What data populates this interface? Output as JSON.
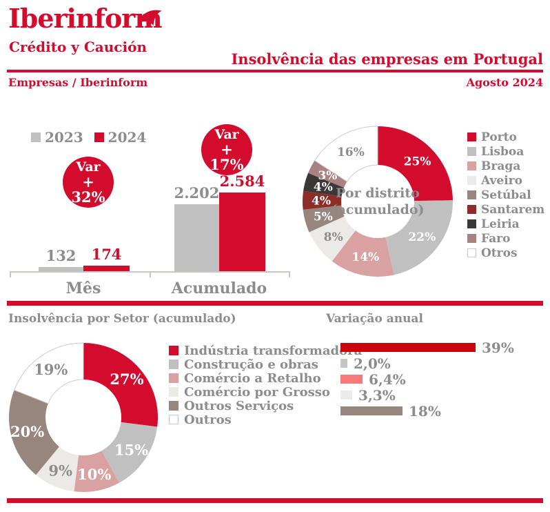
{
  "brand": {
    "logo_text": "Iberinform",
    "logo_sub": "Crédito y Caución"
  },
  "header": {
    "title": "Insolvência das empresas em Portugal",
    "breadcrumb": "Empresas / Iberinform",
    "date": "Agosto 2024"
  },
  "colors": {
    "brand_red": "#D30C2E",
    "text_gray": "#8C8C8C",
    "series_gray": "#C1C0C0",
    "pink": "#D9A1A1",
    "light_gray": "#ECEAE7",
    "taupe": "#97867D",
    "dark_red": "#8E2D28",
    "dark": "#3B3838",
    "mauve": "#A98381",
    "salmon": "#F8797C",
    "variation_red": "#C9040C",
    "axis_gray": "#C9C6C3"
  },
  "chart_data": [
    {
      "id": "monthly_bars",
      "type": "bar",
      "categories": [
        "Mês",
        "Acumulado"
      ],
      "series": [
        {
          "name": "2023",
          "color": "#C1C0C0",
          "values": [
            132,
            2202
          ],
          "labels": [
            "132",
            "2.202"
          ]
        },
        {
          "name": "2024",
          "color": "#D30C2E",
          "values": [
            174,
            2584
          ],
          "labels": [
            "174",
            "2.584"
          ]
        }
      ],
      "annotations": [
        {
          "line1": "Var",
          "line2": "+ 32%"
        },
        {
          "line1": "Var",
          "line2": "+ 17%"
        }
      ],
      "ylim": [
        0,
        2584
      ]
    },
    {
      "id": "district_donut",
      "type": "pie",
      "center_label": [
        "Por distrito",
        "(acumulado)"
      ],
      "legend_position": "right",
      "slices": [
        {
          "label": "Porto",
          "value": 25,
          "text": "25%",
          "color": "#D30C2E"
        },
        {
          "label": "Lisboa",
          "value": 22,
          "text": "22%",
          "color": "#C1C0C0"
        },
        {
          "label": "Braga",
          "value": 14,
          "text": "14%",
          "color": "#D9A1A1"
        },
        {
          "label": "Aveiro",
          "value": 8,
          "text": "8%",
          "color": "#ECEAE7"
        },
        {
          "label": "Setúbal",
          "value": 5,
          "text": "5%",
          "color": "#97867D"
        },
        {
          "label": "Santarem",
          "value": 4,
          "text": "4%",
          "color": "#8E2D28"
        },
        {
          "label": "Leiria",
          "value": 4,
          "text": "4%",
          "color": "#3B3838"
        },
        {
          "label": "Faro",
          "value": 3,
          "text": "3%",
          "color": "#A98381"
        },
        {
          "label": "Otros",
          "value": 16,
          "text": "16%",
          "color": "#FFFFFF"
        }
      ]
    },
    {
      "id": "sector_donut",
      "type": "pie",
      "title": "Insolvência por Setor (acumulado)",
      "legend_position": "right",
      "slices": [
        {
          "label": "Indústria transformadora",
          "value": 27,
          "text": "27%",
          "color": "#D30C2E"
        },
        {
          "label": "Construção e obras",
          "value": 15,
          "text": "15%",
          "color": "#C1C0C0"
        },
        {
          "label": "Comércio a Retalho",
          "value": 10,
          "text": "10%",
          "color": "#D9A1A1"
        },
        {
          "label": "Comércio por Grosso",
          "value": 9,
          "text": "9%",
          "color": "#ECEAE7"
        },
        {
          "label": "Outros Serviços",
          "value": 20,
          "text": "20%",
          "color": "#97867D"
        },
        {
          "label": "Outros",
          "value": 19,
          "text": "19%",
          "color": "#FFFFFF"
        }
      ]
    },
    {
      "id": "annual_variation",
      "type": "bar",
      "orientation": "horizontal",
      "title": "Variação anual",
      "bars": [
        {
          "value": 39,
          "text": "39%",
          "color": "#C9040C"
        },
        {
          "value": 2.0,
          "text": "2,0%",
          "color": "#C6C5C3"
        },
        {
          "value": 6.4,
          "text": "6,4%",
          "color": "#F8797C"
        },
        {
          "value": 3.3,
          "text": "3,3%",
          "color": "#EDEBE9"
        },
        {
          "value": 18,
          "text": "18%",
          "color": "#97867D"
        }
      ],
      "xlim": [
        0,
        39
      ]
    }
  ]
}
